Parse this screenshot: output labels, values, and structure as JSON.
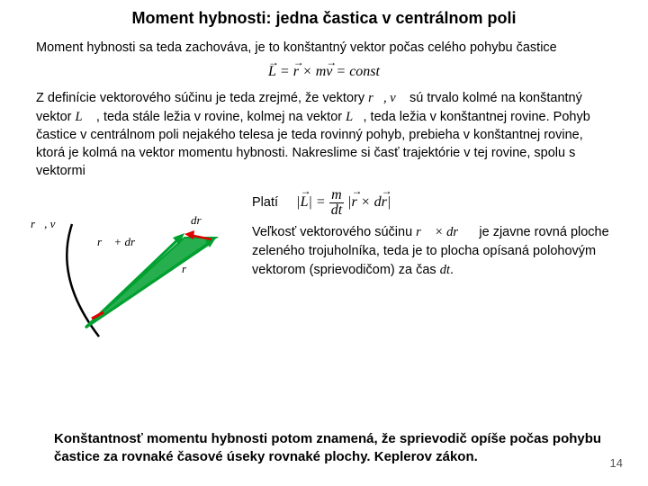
{
  "title": "Moment hybnosti: jedna častica v centrálnom poli",
  "para1": "Moment hybnosti sa teda zachováva, je to konštantný vektor počas celého pohybu častice",
  "formula1_html": "<span class='vec'>L</span> = <span class='vec'>r</span> × m<span class='vec'>v</span> = const",
  "para2_a": "Z definície vektorového súčinu je teda zrejmé, že vektory ",
  "para2_rv": "r⃗, v⃗",
  "para2_b": " sú trvalo kolmé na konštantný vektor ",
  "para2_L": "L⃗",
  "para2_c": " , teda stále ležia v rovine, kolmej na vektor ",
  "para2_d": ", teda ležia v konštantnej rovine. Pohyb častice v centrálnom poli nejakého telesa je teda rovinný pohyb, prebieha v konštantnej rovine, ktorá je kolmá na vektor momentu hybnosti. Nakreslime si časť trajektórie v tej rovine, spolu s vektormi",
  "plati": "Platí",
  "formula2_html": "|<span class='vec'>L</span>| = <span style='display:inline-block;vertical-align:middle;text-align:center;line-height:1'><span style='display:block;border-bottom:1px solid #000;padding:0 2px'>m</span><span style='display:block;padding:0 2px'>dt</span></span> |<span class='vec'>r</span> × d<span class='vec'>r</span>|",
  "right_a": "Veľkosť vektorového súčinu ",
  "right_cross": "r⃗ × dr⃗",
  "right_b": " je zjavne rovná ploche zeleného trojuholníka, teda je to plocha opísaná polohovým vektorom (sprievodičom) za čas ",
  "right_dt": "dt",
  "right_c": ".",
  "footer": "Konštantnosť momentu hybnosti potom znamená, že sprievodič opíše počas pohybu častice za rovnaké časové úseky rovnaké plochy. Keplerov zákon.",
  "pagenum": "14",
  "diagram": {
    "labels": {
      "rv": "r⃗, v⃗",
      "rdr": "r⃗ + dr⃗",
      "dr": "dr⃗",
      "r": "r⃗"
    },
    "colors": {
      "curve": "#000000",
      "green": "#00a030",
      "red": "#e00000"
    }
  }
}
